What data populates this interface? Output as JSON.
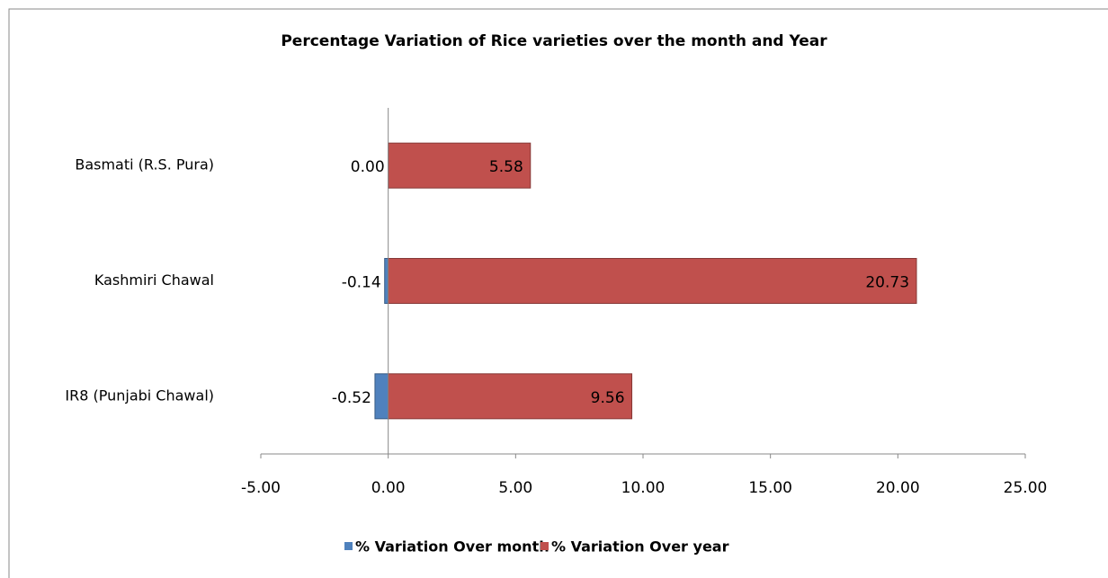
{
  "chart_data": {
    "type": "bar",
    "orientation": "horizontal",
    "title": "Percentage Variation of Rice varieties over the month and Year",
    "categories": [
      "Basmati (R.S. Pura)",
      "Kashmiri Chawal",
      "IR8 (Punjabi Chawal)"
    ],
    "series": [
      {
        "name": "% Variation Over month",
        "color": "#4f81bd",
        "values": [
          0,
          -0.14,
          -0.52
        ],
        "value_labels": [
          "0.00",
          "-0.14",
          "-0.52"
        ]
      },
      {
        "name": "% Variation Over year",
        "color": "#c0504d",
        "values": [
          5.58,
          20.73,
          9.56
        ],
        "value_labels": [
          "5.58",
          "20.73",
          "9.56"
        ]
      }
    ],
    "xlim": [
      -5,
      25
    ],
    "xticks": [
      {
        "value": -5,
        "label": "-5.00"
      },
      {
        "value": 0,
        "label": "0.00"
      },
      {
        "value": 5,
        "label": "5.00"
      },
      {
        "value": 10,
        "label": "10.00"
      },
      {
        "value": 15,
        "label": "15.00"
      },
      {
        "value": 20,
        "label": "20.00"
      },
      {
        "value": 25,
        "label": "25.00"
      }
    ],
    "legend": "bottom"
  }
}
